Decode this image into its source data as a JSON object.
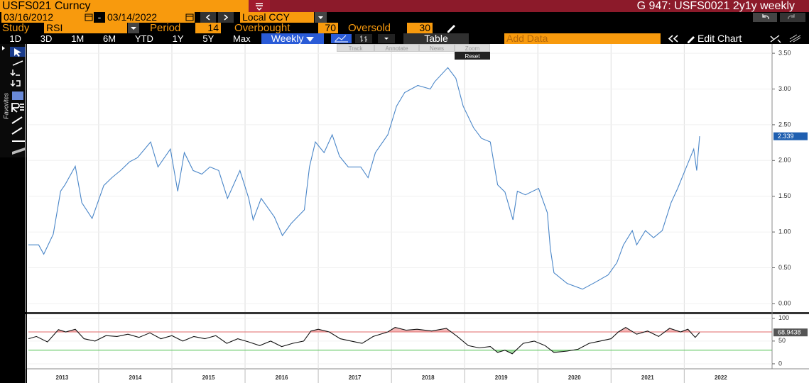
{
  "header": {
    "security": "USFS021 Curncy",
    "title": "G 947: USFS0021 2y1y weekly"
  },
  "range": {
    "start": "03/16/2012",
    "separator": "-",
    "end": "03/14/2022",
    "currency": "Local CCY"
  },
  "study": {
    "label": "Study",
    "name": "RSI",
    "period_label": "Period",
    "period": 14,
    "overbought_label": "Overbought",
    "overbought": 70,
    "oversold_label": "Oversold",
    "oversold": 30
  },
  "toolbar": {
    "periods": [
      "1D",
      "3D",
      "1M",
      "6M",
      "YTD",
      "1Y",
      "5Y",
      "Max"
    ],
    "frequency": "Weekly",
    "table": "Table",
    "add_data": "Add Data",
    "edit_chart": "Edit Chart"
  },
  "chart_tools": [
    "Track",
    "Annotate",
    "News",
    "Zoom",
    "Reset"
  ],
  "sidebar": {
    "favorites": "Favorites"
  },
  "chart_data": [
    {
      "type": "line",
      "color": "#4a86c8",
      "x": [
        2013.04,
        2013.18,
        2013.25,
        2013.38,
        2013.48,
        2013.54,
        2013.68,
        2013.77,
        2013.91,
        2014.07,
        2014.18,
        2014.3,
        2014.42,
        2014.53,
        2014.71,
        2014.81,
        2014.98,
        2015.08,
        2015.17,
        2015.29,
        2015.41,
        2015.52,
        2015.64,
        2015.76,
        2015.93,
        2016.05,
        2016.11,
        2016.22,
        2016.4,
        2016.51,
        2016.63,
        2016.81,
        2016.88,
        2016.96,
        2017.08,
        2017.19,
        2017.29,
        2017.41,
        2017.58,
        2017.68,
        2017.78,
        2017.95,
        2018.07,
        2018.18,
        2018.36,
        2018.53,
        2018.59,
        2018.77,
        2018.88,
        2018.98,
        2019.12,
        2019.23,
        2019.35,
        2019.45,
        2019.55,
        2019.66,
        2019.72,
        2019.83,
        2020.01,
        2020.13,
        2020.17,
        2020.22,
        2020.4,
        2020.61,
        2020.79,
        2020.96,
        2021.08,
        2021.17,
        2021.29,
        2021.35,
        2021.47,
        2021.58,
        2021.7,
        2021.82,
        2021.91,
        2022.03,
        2022.13,
        2022.17,
        2022.21
      ],
      "values": [
        0.82,
        0.82,
        0.69,
        0.97,
        1.57,
        1.66,
        1.92,
        1.41,
        1.19,
        1.65,
        1.76,
        1.86,
        1.98,
        2.04,
        2.26,
        1.91,
        2.16,
        1.57,
        2.11,
        1.86,
        1.81,
        1.91,
        1.86,
        1.47,
        1.86,
        1.47,
        1.17,
        1.47,
        1.21,
        0.95,
        1.12,
        1.31,
        1.91,
        2.26,
        2.11,
        2.36,
        2.06,
        1.91,
        1.91,
        1.76,
        2.11,
        2.36,
        2.76,
        2.95,
        3.05,
        3.0,
        3.1,
        3.3,
        3.15,
        2.76,
        2.46,
        2.31,
        2.26,
        1.66,
        1.56,
        1.17,
        1.57,
        1.52,
        1.61,
        1.27,
        0.77,
        0.43,
        0.28,
        0.2,
        0.3,
        0.4,
        0.57,
        0.82,
        1.02,
        0.82,
        1.02,
        0.92,
        1.02,
        1.41,
        1.61,
        1.91,
        2.16,
        1.86,
        2.339
      ],
      "xlim": [
        2013.04,
        2023.2
      ],
      "ylim": [
        -0.12,
        3.63
      ],
      "xticks": [
        2013,
        2014,
        2015,
        2016,
        2017,
        2018,
        2019,
        2020,
        2021,
        2022
      ],
      "yticks": [
        {
          "value": 0,
          "label": "0.00"
        },
        {
          "value": 0.5,
          "label": "0.50"
        },
        {
          "value": 1,
          "label": "1.00"
        },
        {
          "value": 1.5,
          "label": "1.50"
        },
        {
          "value": 2,
          "label": "2.00"
        },
        {
          "value": 2.5,
          "label": "2.50"
        },
        {
          "value": 3,
          "label": "3.00"
        },
        {
          "value": 3.5,
          "label": "3.50"
        }
      ],
      "last_value_color": "#1f5fb0",
      "grid": true
    },
    {
      "type": "line",
      "color": "#111111",
      "x": [
        2013.04,
        2013.15,
        2013.3,
        2013.45,
        2013.55,
        2013.68,
        2013.8,
        2013.95,
        2014.1,
        2014.25,
        2014.4,
        2014.55,
        2014.7,
        2014.85,
        2015.0,
        2015.15,
        2015.3,
        2015.45,
        2015.6,
        2015.75,
        2015.9,
        2016.05,
        2016.2,
        2016.35,
        2016.5,
        2016.65,
        2016.8,
        2016.9,
        2017.0,
        2017.15,
        2017.3,
        2017.45,
        2017.6,
        2017.75,
        2017.95,
        2018.05,
        2018.2,
        2018.35,
        2018.55,
        2018.75,
        2018.9,
        2019.05,
        2019.2,
        2019.35,
        2019.45,
        2019.55,
        2019.65,
        2019.8,
        2019.95,
        2020.1,
        2020.22,
        2020.4,
        2020.55,
        2020.7,
        2020.85,
        2021.0,
        2021.1,
        2021.2,
        2021.35,
        2021.5,
        2021.65,
        2021.8,
        2021.95,
        2022.05,
        2022.15,
        2022.21
      ],
      "values": [
        55,
        60,
        48,
        75,
        70,
        76,
        55,
        50,
        62,
        60,
        65,
        58,
        68,
        55,
        62,
        50,
        60,
        55,
        62,
        45,
        55,
        48,
        40,
        50,
        38,
        45,
        50,
        72,
        76,
        70,
        55,
        50,
        45,
        60,
        70,
        80,
        74,
        76,
        72,
        78,
        60,
        40,
        35,
        38,
        25,
        30,
        22,
        45,
        50,
        40,
        25,
        28,
        32,
        45,
        50,
        55,
        70,
        80,
        65,
        72,
        60,
        78,
        70,
        76,
        58,
        68.9438
      ],
      "xlim": [
        2013.04,
        2023.2
      ],
      "ylim": [
        -11,
        109
      ],
      "xticks": [
        2013,
        2014,
        2015,
        2016,
        2017,
        2018,
        2019,
        2020,
        2021,
        2022
      ],
      "yticks": [
        0,
        50,
        100
      ],
      "bands": true,
      "overbought_color": "#e06a6a",
      "oversold_color": "#4cc04c",
      "last_value_color": "#555555",
      "grid": true
    }
  ]
}
